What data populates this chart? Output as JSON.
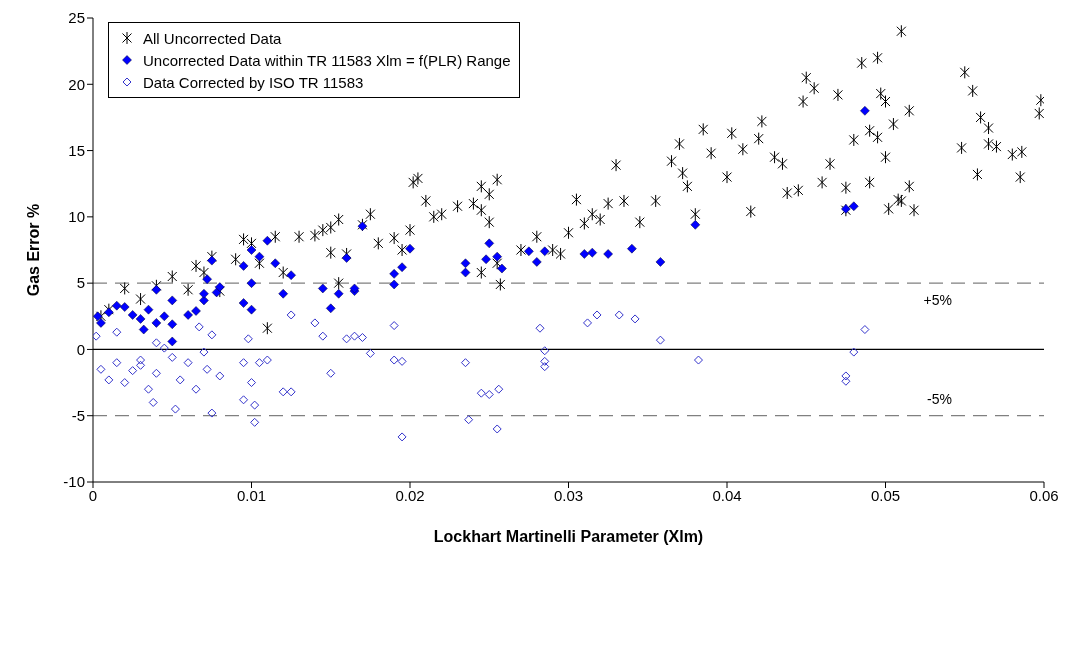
{
  "chart_data": {
    "type": "scatter",
    "xlabel": "Lockhart Martinelli Parameter (Xlm)",
    "ylabel": "Gas Error %",
    "xlim": [
      0,
      0.06
    ],
    "xticks": [
      0,
      0.01,
      0.02,
      0.03,
      0.04,
      0.05,
      0.06
    ],
    "ylim": [
      -10,
      25
    ],
    "yticks": [
      -10,
      -5,
      0,
      5,
      10,
      15,
      20,
      25
    ],
    "legend": "top left",
    "series": [
      {
        "name": "All Uncorrected Data",
        "color": "#000000",
        "marker": "cross",
        "x": [
          0.0005,
          0.001,
          0.002,
          0.003,
          0.004,
          0.005,
          0.006,
          0.0065,
          0.007,
          0.0075,
          0.008,
          0.009,
          0.0095,
          0.01,
          0.0105,
          0.011,
          0.0115,
          0.012,
          0.013,
          0.014,
          0.0145,
          0.015,
          0.0155,
          0.015,
          0.0155,
          0.016,
          0.017,
          0.0175,
          0.018,
          0.019,
          0.0195,
          0.02,
          0.0202,
          0.0205,
          0.021,
          0.0215,
          0.022,
          0.023,
          0.024,
          0.0245,
          0.0245,
          0.025,
          0.0255,
          0.025,
          0.0245,
          0.0255,
          0.0257,
          0.027,
          0.028,
          0.029,
          0.0295,
          0.03,
          0.0305,
          0.031,
          0.0315,
          0.032,
          0.0325,
          0.033,
          0.0335,
          0.0345,
          0.0355,
          0.0365,
          0.037,
          0.0375,
          0.0372,
          0.038,
          0.0385,
          0.039,
          0.04,
          0.0403,
          0.041,
          0.0415,
          0.042,
          0.0422,
          0.043,
          0.0435,
          0.0438,
          0.0445,
          0.0448,
          0.045,
          0.0455,
          0.046,
          0.0465,
          0.047,
          0.0475,
          0.0475,
          0.048,
          0.0485,
          0.049,
          0.049,
          0.0495,
          0.0497,
          0.05,
          0.0502,
          0.0505,
          0.051,
          0.051,
          0.0515,
          0.0515,
          0.0518,
          0.055,
          0.0548,
          0.0555,
          0.0558,
          0.056,
          0.0565,
          0.0565,
          0.057,
          0.058,
          0.0585,
          0.0598,
          0.0597,
          0.0586,
          0.0495,
          0.05,
          0.0508
        ],
        "values": [
          2.5,
          3,
          4.6,
          3.8,
          4.8,
          5.5,
          4.5,
          6.3,
          5.8,
          7,
          4.4,
          6.8,
          8.3,
          8,
          6.5,
          1.6,
          8.5,
          5.8,
          8.5,
          8.6,
          9,
          9.2,
          9.8,
          7.3,
          5,
          7.2,
          9.4,
          10.2,
          8,
          8.4,
          7.5,
          9,
          12.6,
          12.9,
          11.2,
          10,
          10.2,
          10.8,
          11,
          12.3,
          10.5,
          11.7,
          12.8,
          9.6,
          5.8,
          6.5,
          4.9,
          7.5,
          8.5,
          7.5,
          7.2,
          8.8,
          11.3,
          9.5,
          10.2,
          9.8,
          11,
          13.9,
          11.2,
          9.6,
          11.2,
          14.2,
          15.5,
          12.3,
          13.3,
          10.2,
          16.6,
          14.8,
          13,
          16.3,
          15.1,
          10.4,
          15.9,
          17.2,
          14.5,
          14,
          11.8,
          12,
          18.7,
          20.5,
          19.7,
          12.6,
          14,
          19.2,
          10.5,
          12.2,
          15.8,
          21.6,
          16.5,
          12.6,
          22,
          19.3,
          18.7,
          10.6,
          17,
          24,
          11.2,
          18,
          12.3,
          10.5,
          20.9,
          15.2,
          19.5,
          13.2,
          17.5,
          16.7,
          15.5,
          15.3,
          14.7,
          13,
          18.8,
          17.8,
          14.9,
          16,
          14.5,
          11.3
        ]
      },
      {
        "name": "Uncorrected Data within TR 11583 Xlm = f(PLR) Range",
        "color": "#0000ff",
        "marker": "diamond",
        "x": [
          0.0003,
          0.0005,
          0.001,
          0.0015,
          0.002,
          0.0025,
          0.003,
          0.0032,
          0.0035,
          0.004,
          0.004,
          0.0045,
          0.005,
          0.005,
          0.005,
          0.006,
          0.0065,
          0.007,
          0.007,
          0.0075,
          0.0072,
          0.0078,
          0.008,
          0.0095,
          0.0095,
          0.01,
          0.01,
          0.01,
          0.0105,
          0.011,
          0.0115,
          0.0125,
          0.012,
          0.0145,
          0.015,
          0.0155,
          0.016,
          0.0165,
          0.017,
          0.0165,
          0.019,
          0.019,
          0.0195,
          0.02,
          0.0235,
          0.0235,
          0.025,
          0.0248,
          0.0255,
          0.0258,
          0.028,
          0.0285,
          0.0275,
          0.031,
          0.0315,
          0.0325,
          0.034,
          0.0358,
          0.038,
          0.0475,
          0.048,
          0.0487
        ],
        "values": [
          2.5,
          2,
          2.8,
          3.3,
          3.2,
          2.6,
          2.3,
          1.5,
          3,
          4.5,
          2,
          2.5,
          1.9,
          0.6,
          3.7,
          2.6,
          2.9,
          3.7,
          4.2,
          6.7,
          5.3,
          4.3,
          4.7,
          3.5,
          6.3,
          7.5,
          5,
          3,
          7,
          8.2,
          6.5,
          5.6,
          4.2,
          4.6,
          3.1,
          4.2,
          6.9,
          4.4,
          9.3,
          4.6,
          4.9,
          5.7,
          6.2,
          7.6,
          5.8,
          6.5,
          8,
          6.8,
          7,
          6.1,
          6.6,
          7.4,
          7.4,
          7.2,
          7.3,
          7.2,
          7.6,
          6.6,
          9.4,
          10.6,
          10.8,
          18
        ]
      },
      {
        "name": "Data Corrected by ISO TR 11583",
        "color": "#3333cc",
        "marker": "diamond",
        "x": [
          0.0002,
          0.0005,
          0.001,
          0.0015,
          0.0015,
          0.002,
          0.0025,
          0.003,
          0.003,
          0.0035,
          0.0038,
          0.004,
          0.004,
          0.0045,
          0.005,
          0.0052,
          0.0055,
          0.006,
          0.0065,
          0.0067,
          0.007,
          0.0072,
          0.0075,
          0.0075,
          0.008,
          0.0095,
          0.0095,
          0.0098,
          0.01,
          0.0102,
          0.0102,
          0.0105,
          0.011,
          0.012,
          0.0125,
          0.0125,
          0.014,
          0.0145,
          0.015,
          0.016,
          0.0165,
          0.017,
          0.0175,
          0.019,
          0.019,
          0.0195,
          0.0195,
          0.0235,
          0.0237,
          0.0245,
          0.025,
          0.0255,
          0.0256,
          0.0282,
          0.0285,
          0.0285,
          0.0285,
          0.0312,
          0.0318,
          0.0332,
          0.0342,
          0.0358,
          0.0382,
          0.0475,
          0.0475,
          0.048,
          0.0487
        ],
        "values": [
          1,
          -1.5,
          -2.3,
          -1,
          1.3,
          -2.5,
          -1.6,
          -0.8,
          -1.2,
          -3,
          -4,
          -1.8,
          0.5,
          0.1,
          -0.6,
          -4.5,
          -2.3,
          -1,
          -3,
          1.7,
          -0.2,
          -1.5,
          -4.8,
          1.1,
          -2,
          -1,
          -3.8,
          0.8,
          -2.5,
          -4.2,
          -5.5,
          -1,
          -0.8,
          -3.2,
          2.6,
          -3.2,
          2,
          1,
          -1.8,
          0.8,
          1,
          0.9,
          -0.3,
          1.8,
          -0.8,
          -6.6,
          -0.9,
          -1,
          -5.3,
          -3.3,
          -3.4,
          -6,
          -3,
          1.6,
          -0.1,
          -0.9,
          -1.3,
          2,
          2.6,
          2.6,
          2.3,
          0.7,
          -0.8,
          -2,
          -2.4,
          -0.2,
          1.5
        ]
      }
    ],
    "ref_lines": [
      {
        "axis": "y",
        "value": 5,
        "label": "+5%",
        "color": "#808080",
        "line_style": "dashed"
      },
      {
        "axis": "y",
        "value": -5,
        "label": "-5%",
        "color": "#808080",
        "line_style": "dashed"
      },
      {
        "axis": "y",
        "value": 0,
        "color": "#000000",
        "line_style": "solid"
      }
    ]
  }
}
